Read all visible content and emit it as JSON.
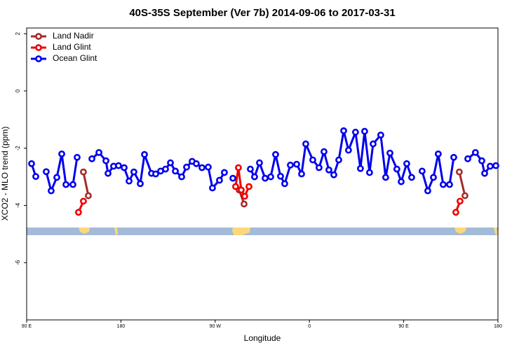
{
  "chart_data": {
    "type": "line",
    "title": "40S-35S September (Ver 7b)   2014-09-06 to 2017-03-31",
    "xlabel": "Longitude",
    "ylabel": "XCO2 - MLO trend (ppm)",
    "xlim": [
      90,
      540
    ],
    "ylim": [
      -8.0,
      2.2
    ],
    "xticks": [
      {
        "value": 90,
        "label": "90 E"
      },
      180,
      {
        "value": 270,
        "label": "90 W"
      },
      {
        "value": 360,
        "label": "0"
      },
      {
        "value": 450,
        "label": "90 E"
      },
      {
        "value": 540,
        "label": "180"
      }
    ],
    "yticks": [
      2,
      0,
      -2,
      -4,
      -6
    ],
    "legend": "top-left",
    "series": [
      {
        "name": "Land Nadir",
        "color": "#a52a2a",
        "x": [
          144.2,
          148.9,
          220,
          292.9,
          297.6,
          400,
          503.1,
          508.5
        ],
        "values": [
          -2.83,
          -3.66,
          null,
          -3.46,
          -3.95,
          null,
          -2.83,
          -3.66
        ]
      },
      {
        "name": "Land Glint",
        "color": "#ee0000",
        "x": [
          139.5,
          144.2,
          220,
          289.5,
          292.2,
          294.9,
          298.2,
          302.3,
          400,
          499.8,
          503.8
        ],
        "values": [
          -4.24,
          -3.85,
          null,
          -3.34,
          -2.68,
          -3.46,
          -3.68,
          -3.34,
          null,
          -4.24,
          -3.85
        ]
      },
      {
        "name": "Ocean Glint",
        "color": "#0000ee",
        "x": [
          94.7,
          98.7,
          103.4,
          108.7,
          113.4,
          118.8,
          123.5,
          127.5,
          134.2,
          138.2,
          143.6,
          152.3,
          159.0,
          165.7,
          167.7,
          173.0,
          177.7,
          183.1,
          187.8,
          192.4,
          198.5,
          202.5,
          209.2,
          213.2,
          217.9,
          222.6,
          227.3,
          232.0,
          238.0,
          242.7,
          248.0,
          252.0,
          257.4,
          263.4,
          267.4,
          274.1,
          278.8,
          282.8,
          286.9,
          295.6,
          303.6,
          307.6,
          312.3,
          317.7,
          323.0,
          327.7,
          332.4,
          336.4,
          341.8,
          347.8,
          352.5,
          356.5,
          363.2,
          369.2,
          373.9,
          378.6,
          383.3,
          388.0,
          392.7,
          397.3,
          404.0,
          408.7,
          412.7,
          417.4,
          420.8,
          428.1,
          432.8,
          436.9,
          443.5,
          447.6,
          452.9,
          457.6,
          462.3,
          467.6,
          473.0,
          478.4,
          483.0,
          487.7,
          493.8,
          497.8,
          503.1,
          511.2,
          518.5,
          524.6,
          527.3,
          532.6,
          538.0
        ],
        "values": [
          -2.54,
          -2.99,
          null,
          -2.82,
          -3.49,
          -3.02,
          -2.2,
          -3.27,
          -3.27,
          -2.32,
          null,
          -2.37,
          -2.15,
          -2.44,
          -2.88,
          -2.63,
          -2.61,
          -2.68,
          -3.15,
          -2.83,
          -3.24,
          -2.22,
          -2.88,
          -2.9,
          -2.8,
          -2.73,
          -2.51,
          -2.8,
          -3.0,
          -2.66,
          -2.46,
          -2.54,
          -2.68,
          -2.66,
          -3.39,
          -3.12,
          -2.85,
          null,
          -3.05,
          null,
          -2.73,
          -3.0,
          -2.51,
          -3.05,
          -3.0,
          -2.22,
          -2.98,
          -3.24,
          -2.59,
          -2.56,
          -2.9,
          -1.85,
          -2.41,
          -2.68,
          -2.12,
          -2.76,
          -2.93,
          -2.41,
          -1.39,
          -2.07,
          -1.44,
          -2.71,
          -1.41,
          -2.85,
          -1.85,
          -1.54,
          -3.02,
          -2.17,
          -2.73,
          -3.17,
          -2.54,
          -3.02,
          null,
          -2.8,
          -3.49,
          -3.02,
          -2.2,
          -3.27,
          -3.27,
          -2.32,
          null,
          -2.37,
          -2.15,
          -2.44,
          -2.88,
          -2.63,
          -2.61
        ]
      }
    ]
  }
}
